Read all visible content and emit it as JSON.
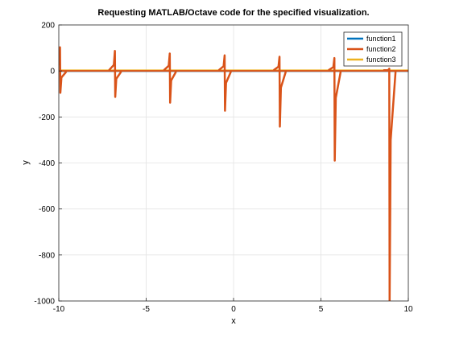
{
  "chart_data": {
    "type": "line",
    "title": "Requesting MATLAB/Octave code for the specified visualization.",
    "xlabel": "x",
    "ylabel": "y",
    "xlim": [
      -10,
      10
    ],
    "ylim": [
      -1000,
      200
    ],
    "xticks": [
      -10,
      -5,
      0,
      5,
      10
    ],
    "yticks": [
      -1000,
      -800,
      -600,
      -400,
      -200,
      0,
      200
    ],
    "xtick_labels": [
      "-10",
      "-5",
      "0",
      "5",
      "10"
    ],
    "ytick_labels": [
      "-1000",
      "-800",
      "-600",
      "-400",
      "-200",
      "0",
      "200"
    ],
    "grid": true,
    "legend_position": "top-right",
    "series": [
      {
        "name": "function1",
        "color": "#0072bd",
        "x": [
          -10,
          -5,
          0,
          5,
          10
        ],
        "y": [
          0,
          0,
          0,
          0,
          0
        ]
      },
      {
        "name": "function2",
        "color": "#d95319",
        "baseline": [
          [
            -10,
            0
          ],
          [
            10,
            0
          ]
        ],
        "spikes": [
          {
            "x": -9.92,
            "top": 103,
            "bottom": -95
          },
          {
            "x": -6.78,
            "top": 87,
            "bottom": -113
          },
          {
            "x": -3.64,
            "top": 76,
            "bottom": -138
          },
          {
            "x": -0.5,
            "top": 68,
            "bottom": -173
          },
          {
            "x": 2.64,
            "top": 62,
            "bottom": -242
          },
          {
            "x": 5.78,
            "top": 56,
            "bottom": -390
          },
          {
            "x": 8.92,
            "top": 10,
            "bottom": -1000
          }
        ]
      },
      {
        "name": "function3",
        "color": "#edb120",
        "x": [
          -10,
          -5,
          0,
          5,
          10
        ],
        "y": [
          2,
          2,
          2,
          2,
          2
        ]
      }
    ]
  }
}
